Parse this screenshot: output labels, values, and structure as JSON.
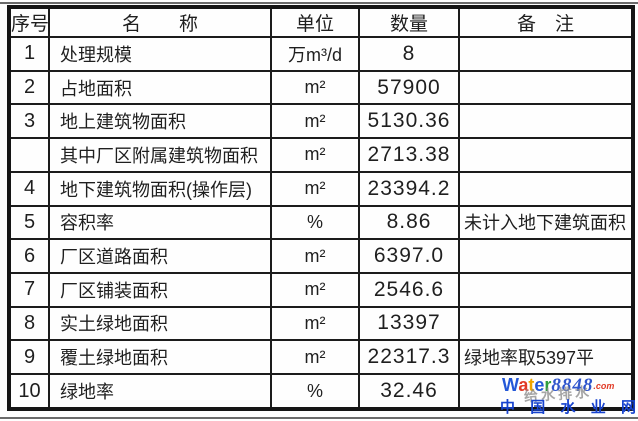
{
  "table": {
    "columns": [
      "序号",
      "名　　称",
      "单位",
      "数量",
      "备　注"
    ],
    "rows": [
      {
        "no": "1",
        "name": "处理规模",
        "unit": "万m³/d",
        "qty": "8",
        "note": ""
      },
      {
        "no": "2",
        "name": "占地面积",
        "unit": "m²",
        "qty": "57900",
        "note": ""
      },
      {
        "no": "3",
        "name": "地上建筑物面积",
        "unit": "m²",
        "qty": "5130.36",
        "note": ""
      },
      {
        "no": "",
        "name": "其中厂区附属建筑物面积",
        "unit": "m²",
        "qty": "2713.38",
        "note": ""
      },
      {
        "no": "4",
        "name": "地下建筑物面积(操作层)",
        "unit": "m²",
        "qty": "23394.2",
        "note": ""
      },
      {
        "no": "5",
        "name": "容积率",
        "unit": "%",
        "qty": "8.86",
        "note": "未计入地下建筑面积"
      },
      {
        "no": "6",
        "name": "厂区道路面积",
        "unit": "m²",
        "qty": "6397.0",
        "note": ""
      },
      {
        "no": "7",
        "name": "厂区铺装面积",
        "unit": "m²",
        "qty": "2546.6",
        "note": ""
      },
      {
        "no": "8",
        "name": "实土绿地面积",
        "unit": "m²",
        "qty": "13397",
        "note": ""
      },
      {
        "no": "9",
        "name": "覆土绿地面积",
        "unit": "m²",
        "qty": "22317.3",
        "note": "绿地率取5397平"
      },
      {
        "no": "10",
        "name": "绿地率",
        "unit": "%",
        "qty": "32.46",
        "note": ""
      }
    ],
    "line_color": "#1c1c1c",
    "text_color": "#1f1f1f"
  },
  "watermark": {
    "brand_letters": [
      {
        "ch": "W",
        "color": "#2458d8"
      },
      {
        "ch": "a",
        "color": "#e13a26"
      },
      {
        "ch": "t",
        "color": "#f0a500"
      },
      {
        "ch": "e",
        "color": "#2458d8"
      },
      {
        "ch": "r",
        "color": "#2f9e3f"
      }
    ],
    "brand_number": "8848",
    "brand_number_color": "#2f55cc",
    "domain": ".com",
    "domain_color": "#e13a26",
    "overlay_text": "给水排水",
    "site_name": "中国水业网",
    "site_color": "#1743cf"
  }
}
